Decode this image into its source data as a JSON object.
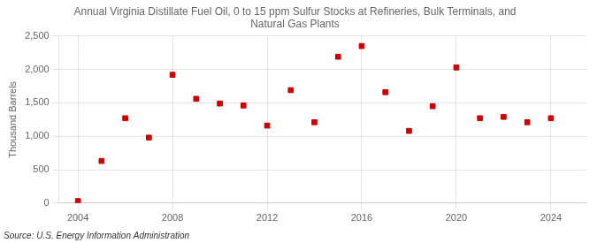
{
  "chart_data": {
    "type": "scatter",
    "title": "Annual Virginia Distillate Fuel Oil, 0 to 15 ppm Sulfur Stocks at Refineries, Bulk Terminals, and\nNatural Gas Plants",
    "ylabel": "Thousand Barrels",
    "annotations": [
      "Source: U.S. Energy Information Administration"
    ],
    "x": [
      2004,
      2005,
      2006,
      2007,
      2008,
      2009,
      2010,
      2011,
      2012,
      2013,
      2014,
      2015,
      2016,
      2017,
      2018,
      2019,
      2020,
      2021,
      2022,
      2023,
      2024
    ],
    "values": [
      30,
      630,
      1270,
      980,
      1920,
      1560,
      1490,
      1460,
      1160,
      1690,
      1210,
      2190,
      2350,
      1660,
      1080,
      1450,
      2030,
      1270,
      1290,
      1210,
      1270
    ],
    "color": "#cc0000",
    "marker": "square",
    "xlim": [
      2003.2,
      2025.5
    ],
    "ylim": [
      0,
      2500
    ],
    "xticks": [
      2004,
      2008,
      2012,
      2016,
      2020,
      2024
    ],
    "yticks": [
      0,
      500,
      {
        "value": 1000,
        "label": "1,000"
      },
      {
        "value": 1500,
        "label": "1,500"
      },
      {
        "value": 2000,
        "label": "2,000"
      },
      {
        "value": 2500,
        "label": "2,500"
      }
    ],
    "grid": true
  }
}
